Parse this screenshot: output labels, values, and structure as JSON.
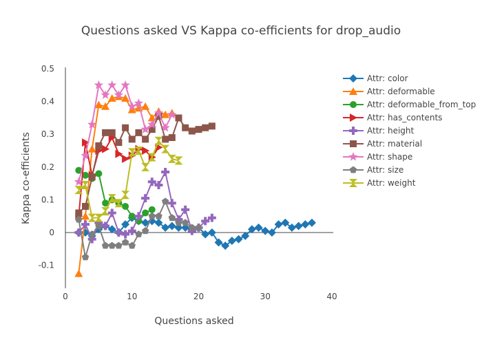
{
  "chart_data": {
    "type": "line",
    "title": "Questions asked VS Kappa co-efficients for drop_audio",
    "xlabel": "Questions asked",
    "ylabel": "Kappa co-efficients",
    "xlim": [
      0,
      40
    ],
    "ylim": [
      -0.17,
      0.5
    ],
    "xticks": [
      0,
      10,
      20,
      30,
      40
    ],
    "yticks": [
      -0.1,
      0,
      0.1,
      0.2,
      0.3,
      0.4,
      0.5
    ],
    "grid": false,
    "legend_position": "right",
    "series": [
      {
        "name": "Attr: color",
        "color": "#1f77b4",
        "marker": "diamond",
        "x": [
          2,
          3,
          4,
          5,
          6,
          7,
          8,
          9,
          10,
          11,
          12,
          13,
          14,
          15,
          16,
          17,
          18,
          19,
          20,
          21,
          22,
          23,
          24,
          25,
          26,
          27,
          28,
          29,
          30,
          31,
          32,
          33,
          34,
          35,
          36,
          37
        ],
        "y": [
          0.0,
          0.0,
          -0.01,
          0.01,
          0.02,
          0.01,
          0.0,
          0.025,
          0.045,
          0.035,
          0.03,
          0.035,
          0.03,
          0.015,
          0.02,
          0.015,
          0.015,
          0.01,
          0.015,
          -0.005,
          0.0,
          -0.03,
          -0.04,
          -0.025,
          -0.02,
          -0.01,
          0.01,
          0.015,
          0.005,
          0.0,
          0.025,
          0.03,
          0.015,
          0.02,
          0.025,
          0.03
        ]
      },
      {
        "name": "Attr: deformable",
        "color": "#ff7f0e",
        "marker": "triangle-up",
        "x": [
          2,
          3,
          4,
          5,
          6,
          7,
          8,
          9,
          10,
          11,
          12,
          13,
          14,
          15,
          16
        ],
        "y": [
          -0.125,
          0.05,
          0.255,
          0.39,
          0.385,
          0.41,
          0.415,
          0.41,
          0.375,
          0.38,
          0.385,
          0.35,
          0.37,
          0.36,
          0.365
        ]
      },
      {
        "name": "Attr: deformable_from_top",
        "color": "#2ca02c",
        "marker": "circle",
        "x": [
          2,
          3,
          4,
          5,
          6,
          7,
          8,
          9,
          10,
          11,
          12,
          13
        ],
        "y": [
          0.19,
          0.175,
          0.165,
          0.18,
          0.09,
          0.1,
          0.09,
          0.08,
          0.05,
          0.035,
          0.06,
          0.07
        ]
      },
      {
        "name": "Attr: has_contents",
        "color": "#d62728",
        "marker": "triangle-right",
        "x": [
          2,
          3,
          4,
          5,
          6,
          7,
          8,
          9,
          10,
          11,
          12,
          13,
          14
        ],
        "y": [
          0.05,
          0.275,
          0.175,
          0.25,
          0.255,
          0.29,
          0.24,
          0.225,
          0.235,
          0.255,
          0.25,
          0.23,
          0.26
        ]
      },
      {
        "name": "Attr: height",
        "color": "#9467bd",
        "marker": "cross",
        "x": [
          2,
          3,
          4,
          5,
          6,
          7,
          8,
          9,
          10,
          11,
          12,
          13,
          14,
          15,
          16,
          17,
          18,
          19,
          20,
          21,
          22
        ],
        "y": [
          0.0,
          0.025,
          -0.02,
          0.03,
          0.02,
          0.06,
          0.0,
          -0.005,
          0.005,
          0.05,
          0.105,
          0.155,
          0.145,
          0.185,
          0.09,
          0.04,
          0.07,
          0.005,
          0.015,
          0.035,
          0.045
        ]
      },
      {
        "name": "Attr: material",
        "color": "#8c564b",
        "marker": "square",
        "x": [
          2,
          3,
          4,
          5,
          6,
          7,
          8,
          9,
          10,
          11,
          12,
          13,
          14,
          15,
          16,
          17,
          18,
          19,
          20,
          21,
          22
        ],
        "y": [
          0.06,
          0.08,
          0.17,
          0.265,
          0.305,
          0.305,
          0.275,
          0.32,
          0.285,
          0.305,
          0.285,
          0.315,
          0.355,
          0.285,
          0.29,
          0.35,
          0.32,
          0.31,
          0.315,
          0.32,
          0.325
        ]
      },
      {
        "name": "Attr: shape",
        "color": "#e377c2",
        "marker": "star",
        "x": [
          2,
          3,
          4,
          5,
          6,
          7,
          8,
          9,
          10,
          11,
          12,
          13,
          14,
          15,
          16
        ],
        "y": [
          0.155,
          0.235,
          0.33,
          0.45,
          0.42,
          0.45,
          0.42,
          0.45,
          0.385,
          0.395,
          0.315,
          0.33,
          0.365,
          0.32,
          0.36
        ]
      },
      {
        "name": "Attr: size",
        "color": "#7f7f7f",
        "marker": "pentagon",
        "x": [
          2,
          3,
          4,
          5,
          6,
          7,
          8,
          9,
          10,
          11,
          12,
          13,
          14,
          15,
          16,
          17,
          18,
          19,
          20
        ],
        "y": [
          0.04,
          -0.075,
          -0.005,
          0.02,
          -0.04,
          -0.04,
          -0.04,
          -0.03,
          -0.04,
          -0.005,
          0.005,
          0.05,
          0.05,
          0.095,
          0.045,
          0.03,
          0.03,
          0.015,
          0.015
        ]
      },
      {
        "name": "Attr: weight",
        "color": "#bcbd22",
        "marker": "hourglass",
        "x": [
          2,
          3,
          4,
          5,
          6,
          7,
          8,
          9,
          10,
          11,
          12,
          13,
          14,
          15,
          16,
          17
        ],
        "y": [
          0.13,
          0.145,
          0.045,
          0.045,
          0.065,
          0.105,
          0.09,
          0.115,
          0.245,
          0.25,
          0.2,
          0.23,
          0.28,
          0.255,
          0.225,
          0.22
        ]
      }
    ]
  }
}
